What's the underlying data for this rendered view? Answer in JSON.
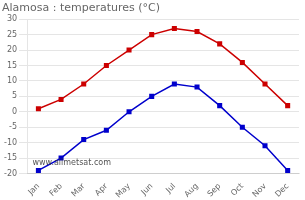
{
  "chart_data": {
    "type": "line",
    "title": "Alamosa : temperatures (°C)",
    "categories": [
      "Jan",
      "Feb",
      "Mar",
      "Apr",
      "May",
      "Jun",
      "Jul",
      "Aug",
      "Sep",
      "Oct",
      "Nov",
      "Dec"
    ],
    "series": [
      {
        "color": "#cc0000",
        "values": [
          1,
          4,
          9,
          15,
          20,
          25,
          27,
          26,
          22,
          16,
          9,
          2
        ]
      },
      {
        "color": "#0000cc",
        "values": [
          -19,
          -15,
          -9,
          -6,
          0,
          5,
          9,
          8,
          2,
          -5,
          -11,
          -19
        ]
      }
    ],
    "marker": "square",
    "ylim": [
      -20,
      30
    ],
    "yticks": [
      -20,
      -15,
      -10,
      -5,
      0,
      5,
      10,
      15,
      20,
      25,
      30
    ],
    "grid": "y",
    "annotations": [
      "www.allmetsat.com"
    ]
  }
}
